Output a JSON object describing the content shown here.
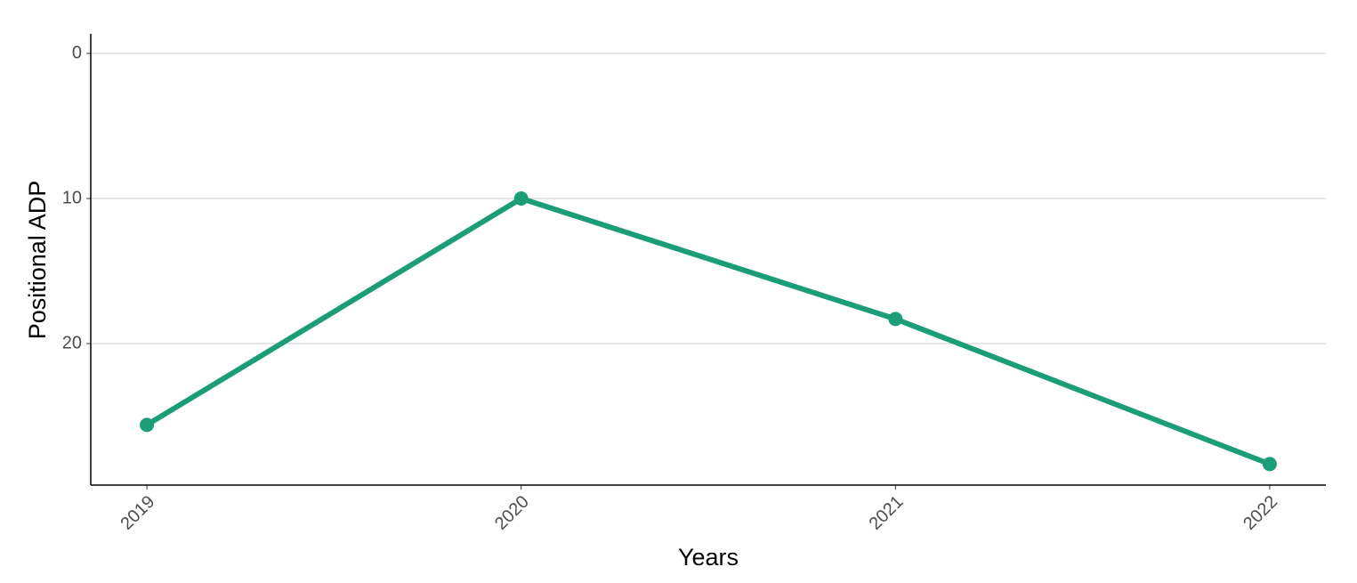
{
  "chart_data": {
    "type": "line",
    "x_label": "Years",
    "y_label": "Positional ADP",
    "x": [
      2019,
      2020,
      2021,
      2022
    ],
    "values": [
      25.6,
      10,
      18.3,
      28.3
    ],
    "color": "#1b9e77",
    "xlim": [
      2018.85,
      2022.15
    ],
    "xticks": [
      2019,
      2020,
      2021,
      2022
    ],
    "ylim": [
      29.75,
      -1.35
    ],
    "yticks": [
      0,
      10,
      20
    ],
    "grid": true
  }
}
